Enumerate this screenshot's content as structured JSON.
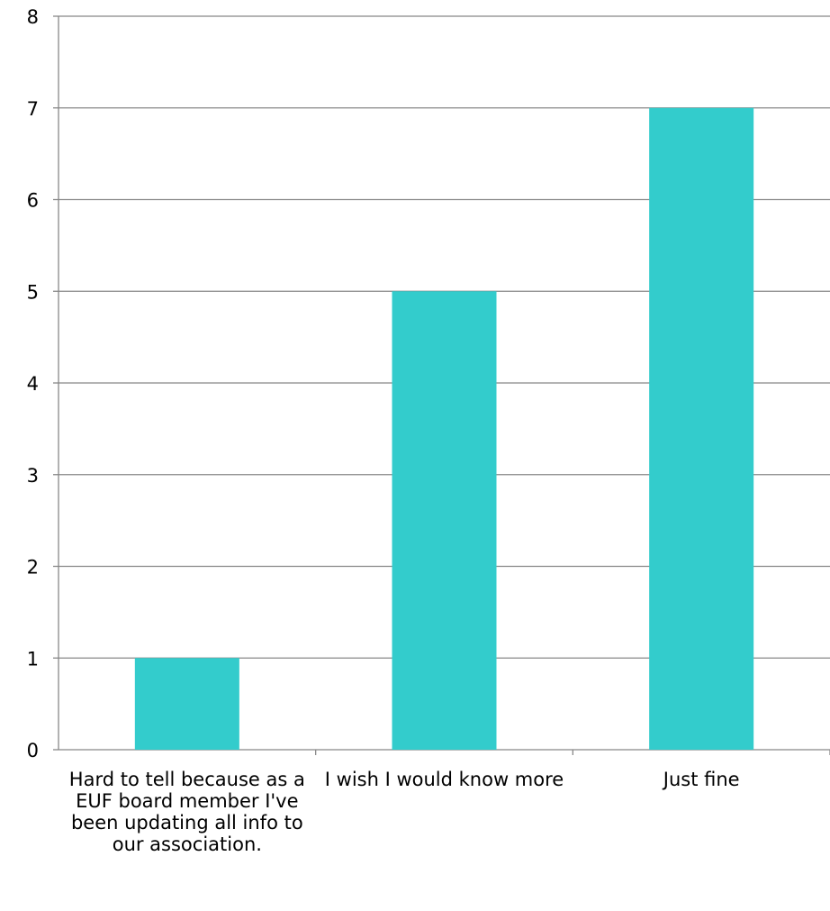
{
  "colors": {
    "bar": "#33CCCC",
    "grid": "#888888",
    "axis": "#888888",
    "text": "#000000",
    "background": "#ffffff"
  },
  "chart_data": {
    "type": "bar",
    "title": "",
    "xlabel": "",
    "ylabel": "",
    "categories": [
      "Hard to tell because as a EUF board member I've been updating all info to our association.",
      "I wish I would know more",
      "Just fine"
    ],
    "values": [
      1,
      5,
      7
    ],
    "ylim": [
      0,
      8
    ],
    "yticks": [
      0,
      1,
      2,
      3,
      4,
      5,
      6,
      7,
      8
    ],
    "grid": true,
    "legend": "none"
  }
}
